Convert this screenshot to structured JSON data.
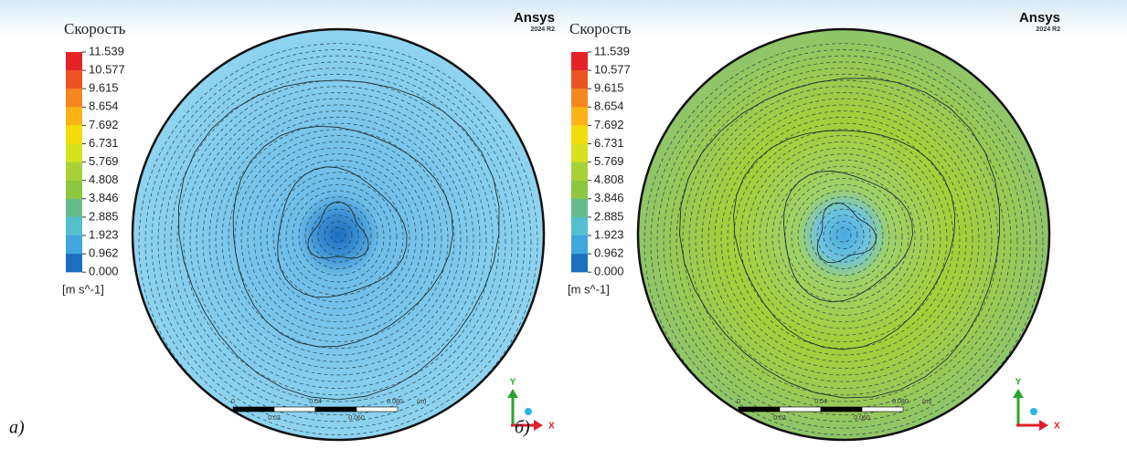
{
  "panels": [
    {
      "label": "а)",
      "legend": {
        "title": "Скорость",
        "ticks": [
          "11.539",
          "10.577",
          "9.615",
          "8.654",
          "7.692",
          "6.731",
          "5.769",
          "4.808",
          "3.846",
          "2.885",
          "1.923",
          "0.962",
          "0.000"
        ],
        "unit": "[m s^-1]"
      },
      "logo": {
        "brand": "Ansys",
        "version": "2024 R2"
      },
      "scale_bar": {
        "top_labels": [
          "0",
          "0.04",
          "0.080",
          "(m)"
        ],
        "bottom_labels": [
          "0.02",
          "0.060"
        ]
      },
      "axes": {
        "y": "Y",
        "x": "X"
      }
    },
    {
      "label": "б)",
      "legend": {
        "title": "Скорость",
        "ticks": [
          "11.539",
          "10.577",
          "9.615",
          "8.654",
          "7.692",
          "6.731",
          "5.769",
          "4.808",
          "3.846",
          "2.885",
          "1.923",
          "0.962",
          "0.000"
        ],
        "unit": "[m s^-1]"
      },
      "logo": {
        "brand": "Ansys",
        "version": "2024 R2"
      },
      "scale_bar": {
        "top_labels": [
          "0",
          "0.04",
          "0.080",
          "(m)"
        ],
        "bottom_labels": [
          "0.02",
          "0.060"
        ]
      },
      "axes": {
        "y": "Y",
        "x": "X"
      }
    }
  ]
}
